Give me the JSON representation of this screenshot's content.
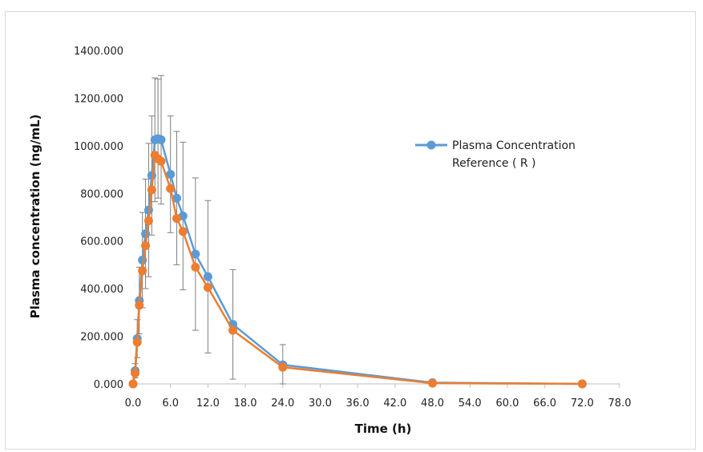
{
  "chart_data": {
    "type": "line",
    "title": "",
    "xlabel": "Time (h)",
    "ylabel": "Plasma concentration (ng/mL)",
    "xlim": [
      0,
      78
    ],
    "ylim": [
      0,
      1400
    ],
    "xticks": [
      "0.0",
      "6.0",
      "12.0",
      "18.0",
      "24.0",
      "30.0",
      "36.0",
      "42.0",
      "48.0",
      "54.0",
      "60.0",
      "66.0",
      "72.0",
      "78.0"
    ],
    "yticks": [
      "0.000",
      "200.000",
      "400.000",
      "600.000",
      "800.000",
      "1000.000",
      "1200.000",
      "1400.000"
    ],
    "grid": false,
    "legend_position": "right",
    "legend": [
      "Plasma Concentration Reference ( R )"
    ],
    "legend_lines": [
      "Plasma Concentration",
      "Reference ( R )"
    ],
    "series": [
      {
        "name": "Plasma Concentration Reference ( R )",
        "color": "#5b9bd5",
        "x": [
          0,
          0.33,
          0.67,
          1,
          1.5,
          2,
          2.5,
          3,
          3.5,
          4,
          4.5,
          6,
          7,
          8,
          10,
          12,
          16,
          24,
          48,
          72
        ],
        "y": [
          0,
          55,
          190,
          350,
          520,
          630,
          730,
          875,
          1025,
          1030,
          1025,
          880,
          780,
          705,
          545,
          450,
          250,
          80,
          5,
          0
        ],
        "error": [
          0,
          30,
          80,
          140,
          200,
          230,
          280,
          250,
          260,
          250,
          270,
          245,
          280,
          310,
          320,
          320,
          230,
          85,
          5,
          0
        ]
      },
      {
        "name": "",
        "color": "#ed7d31",
        "x": [
          0,
          0.33,
          0.67,
          1,
          1.5,
          2,
          2.5,
          3,
          3.5,
          4,
          4.5,
          6,
          7,
          8,
          10,
          12,
          16,
          24,
          48,
          72
        ],
        "y": [
          0,
          45,
          175,
          330,
          475,
          580,
          685,
          815,
          960,
          945,
          935,
          820,
          695,
          640,
          490,
          405,
          225,
          70,
          3,
          0
        ]
      }
    ]
  }
}
